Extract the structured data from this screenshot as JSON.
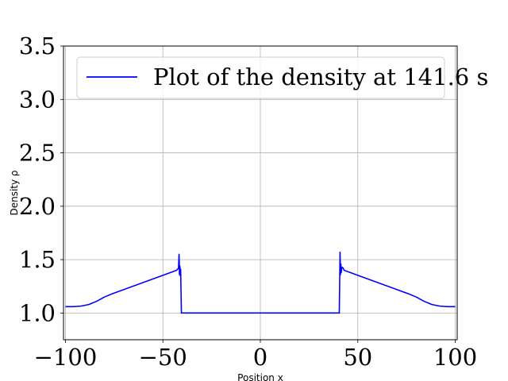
{
  "chart_data": {
    "type": "line",
    "xlabel": "Position x",
    "ylabel": "Density ρ",
    "xlim": [
      -101,
      101
    ],
    "ylim": [
      0.75,
      3.5
    ],
    "xticks": [
      -100,
      -50,
      0,
      50,
      100
    ],
    "xtick_labels": [
      "−100",
      "−50",
      "0",
      "50",
      "100"
    ],
    "yticks": [
      1.0,
      1.5,
      2.0,
      2.5,
      3.0,
      3.5
    ],
    "ytick_labels": [
      "1.0",
      "1.5",
      "2.0",
      "2.5",
      "3.0",
      "3.5"
    ],
    "grid": true,
    "legend_position": "top",
    "series": [
      {
        "name": "Plot of the density at 141.6 s",
        "color": "#0000ff",
        "x": [
          -100,
          -96,
          -92,
          -88,
          -84,
          -80,
          -76,
          -70,
          -64,
          -58,
          -52,
          -46,
          -43,
          -42,
          -41.7,
          -41.5,
          -41.3,
          -41.1,
          -40.9,
          -40.5,
          -40,
          -30,
          -20,
          -10,
          0,
          10,
          20,
          30,
          40,
          40.5,
          40.9,
          41.1,
          41.3,
          41.5,
          41.8,
          42.5,
          43,
          46,
          52,
          58,
          64,
          70,
          76,
          80,
          84,
          88,
          92,
          96,
          100
        ],
        "y": [
          1.06,
          1.06,
          1.065,
          1.08,
          1.11,
          1.15,
          1.18,
          1.22,
          1.26,
          1.3,
          1.34,
          1.38,
          1.4,
          1.42,
          1.55,
          1.36,
          1.44,
          1.35,
          1.41,
          1.0,
          1.0,
          1.0,
          1.0,
          1.0,
          1.0,
          1.0,
          1.0,
          1.0,
          1.0,
          1.0,
          1.57,
          1.36,
          1.46,
          1.38,
          1.43,
          1.42,
          1.4,
          1.38,
          1.34,
          1.3,
          1.26,
          1.22,
          1.18,
          1.15,
          1.11,
          1.08,
          1.065,
          1.06,
          1.06
        ]
      }
    ]
  }
}
